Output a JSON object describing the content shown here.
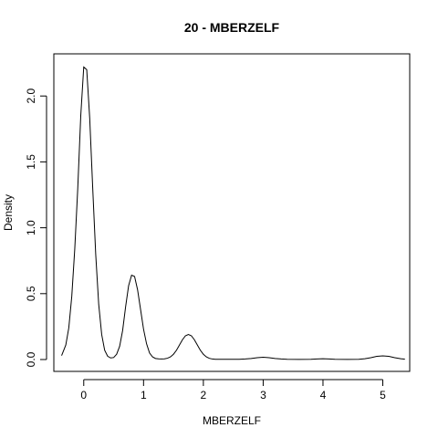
{
  "chart_data": {
    "type": "line",
    "title": "20 - MBERZELF",
    "xlabel": "MBERZELF",
    "ylabel": "Density",
    "xlim": [
      -0.5,
      5.45
    ],
    "ylim": [
      -0.09,
      2.32
    ],
    "x_ticks": [
      0,
      1,
      2,
      3,
      4,
      5
    ],
    "x_tick_labels": [
      "0",
      "1",
      "2",
      "3",
      "4",
      "5"
    ],
    "y_ticks": [
      0.0,
      0.5,
      1.0,
      1.5,
      2.0
    ],
    "y_tick_labels": [
      "0.0",
      "0.5",
      "1.0",
      "1.5",
      "2.0"
    ],
    "grid": false,
    "legend": "none",
    "series": [
      {
        "x": [
          -0.37,
          -0.3,
          -0.25,
          -0.2,
          -0.15,
          -0.1,
          -0.05,
          0.0,
          0.05,
          0.1,
          0.15,
          0.2,
          0.25,
          0.3,
          0.35,
          0.4,
          0.45,
          0.5,
          0.55,
          0.6,
          0.65,
          0.7,
          0.75,
          0.8,
          0.85,
          0.9,
          0.95,
          1.0,
          1.05,
          1.1,
          1.15,
          1.2,
          1.25,
          1.3,
          1.35,
          1.4,
          1.45,
          1.5,
          1.55,
          1.6,
          1.65,
          1.7,
          1.75,
          1.8,
          1.85,
          1.9,
          1.95,
          2.0,
          2.05,
          2.1,
          2.15,
          2.2,
          2.25,
          2.3,
          2.4,
          2.5,
          2.6,
          2.7,
          2.8,
          2.9,
          3.0,
          3.1,
          3.2,
          3.3,
          3.4,
          3.6,
          3.8,
          3.9,
          4.0,
          4.1,
          4.2,
          4.4,
          4.6,
          4.7,
          4.8,
          4.9,
          5.0,
          5.1,
          5.2,
          5.3,
          5.37
        ],
        "values": [
          0.03,
          0.11,
          0.24,
          0.48,
          0.84,
          1.3,
          1.85,
          2.22,
          2.2,
          1.83,
          1.3,
          0.8,
          0.42,
          0.19,
          0.07,
          0.025,
          0.012,
          0.015,
          0.04,
          0.1,
          0.22,
          0.4,
          0.56,
          0.64,
          0.63,
          0.53,
          0.38,
          0.23,
          0.12,
          0.05,
          0.02,
          0.008,
          0.005,
          0.004,
          0.005,
          0.01,
          0.02,
          0.04,
          0.07,
          0.11,
          0.15,
          0.18,
          0.19,
          0.18,
          0.15,
          0.11,
          0.07,
          0.04,
          0.02,
          0.009,
          0.004,
          0.002,
          0.002,
          0.002,
          0.002,
          0.002,
          0.002,
          0.004,
          0.008,
          0.014,
          0.017,
          0.014,
          0.008,
          0.004,
          0.002,
          0.001,
          0.002,
          0.004,
          0.006,
          0.004,
          0.002,
          0.001,
          0.002,
          0.006,
          0.014,
          0.024,
          0.028,
          0.024,
          0.014,
          0.006,
          0.003
        ]
      }
    ]
  }
}
